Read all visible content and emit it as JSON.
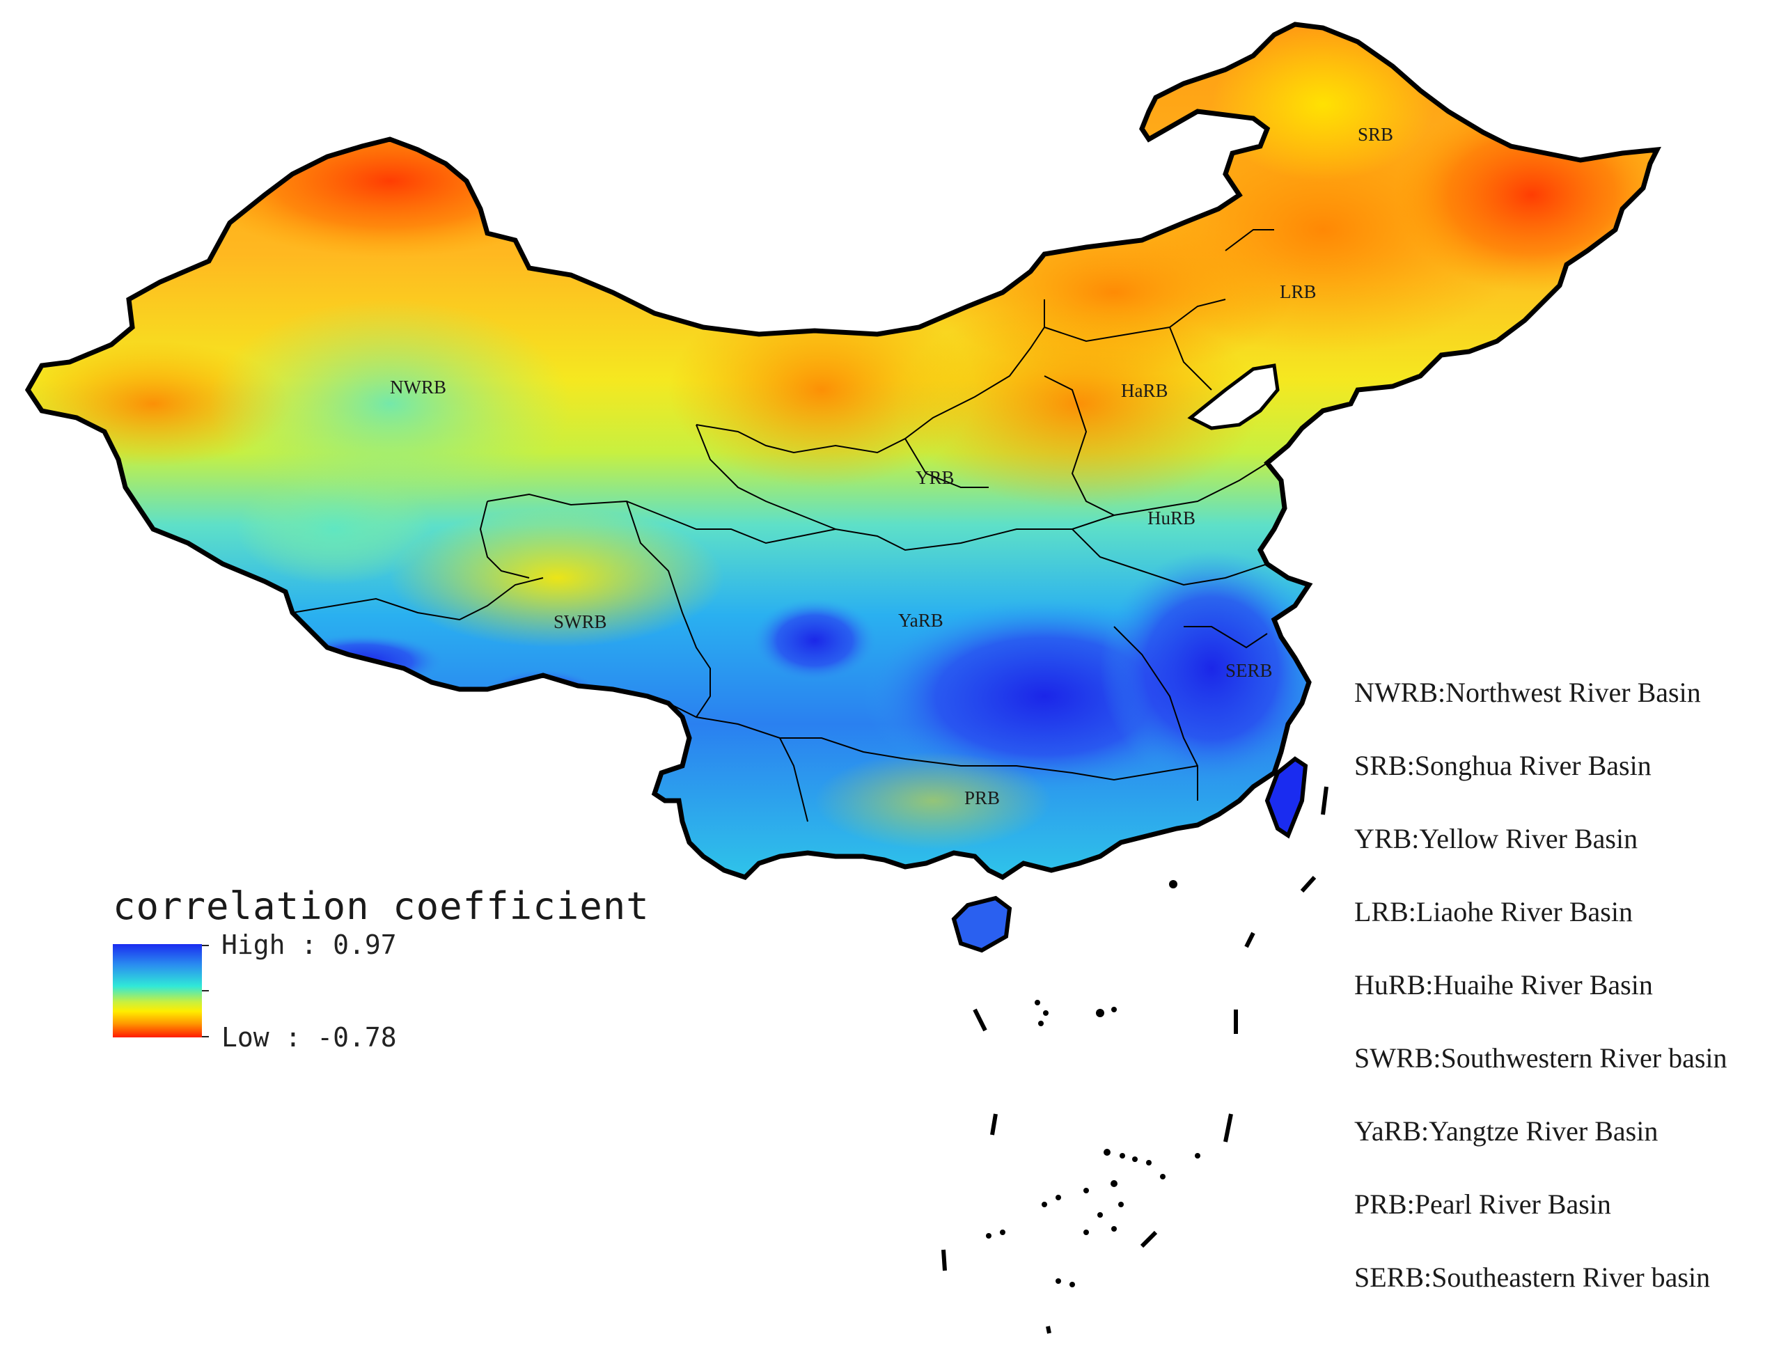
{
  "legend": {
    "title": "correlation coefficient",
    "high_label": "High : 0.97",
    "low_label": "Low : -0.78",
    "high_value": 0.97,
    "low_value": -0.78,
    "colors": [
      "#1a2cf0",
      "#2a8cf0",
      "#30e8d8",
      "#c8f040",
      "#ffee00",
      "#ff9a00",
      "#ff1a00"
    ]
  },
  "basins": [
    {
      "abbr": "NWRB",
      "correlation_tendency": "low"
    },
    {
      "abbr": "SRB",
      "correlation_tendency": "low"
    },
    {
      "abbr": "LRB",
      "correlation_tendency": "low"
    },
    {
      "abbr": "HaRB",
      "correlation_tendency": "low"
    },
    {
      "abbr": "YRB",
      "correlation_tendency": "low"
    },
    {
      "abbr": "HuRB",
      "correlation_tendency": "medium"
    },
    {
      "abbr": "SWRB",
      "correlation_tendency": "medium"
    },
    {
      "abbr": "YaRB",
      "correlation_tendency": "high"
    },
    {
      "abbr": "SERB",
      "correlation_tendency": "high"
    },
    {
      "abbr": "PRB",
      "correlation_tendency": "high"
    }
  ],
  "abbreviations": [
    {
      "text": "NWRB:Northwest River Basin"
    },
    {
      "text": "SRB:Songhua River Basin"
    },
    {
      "text": "YRB:Yellow River Basin"
    },
    {
      "text": "LRB:Liaohe River Basin"
    },
    {
      "text": "HuRB:Huaihe River Basin"
    },
    {
      "text": "SWRB:Southwestern River basin"
    },
    {
      "text": "YaRB:Yangtze River Basin"
    },
    {
      "text": "PRB:Pearl River Basin"
    },
    {
      "text": "SERB:Southeastern River basin"
    }
  ]
}
